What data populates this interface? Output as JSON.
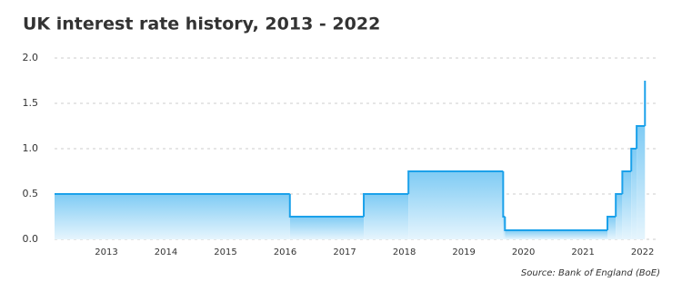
{
  "chart_data": {
    "type": "step",
    "title": "UK interest rate history, 2013 - 2022",
    "source": "Source: Bank of England (BoE)",
    "series": [
      {
        "color": "#1ba1ea",
        "x": [
          2012.13,
          2016.08,
          2017.32,
          2018.07,
          2019.66,
          2019.69,
          2021.41,
          2021.55,
          2021.66,
          2021.81,
          2021.9,
          2022.04
        ],
        "values": [
          0.5,
          0.25,
          0.5,
          0.75,
          0.25,
          0.1,
          0.25,
          0.5,
          0.75,
          1.0,
          1.25,
          1.75
        ]
      }
    ],
    "xlim": [
      2012.13,
      2022.28
    ],
    "xticks": [
      2013,
      2014,
      2015,
      2016,
      2017,
      2018,
      2019,
      2020,
      2021,
      2022
    ],
    "ylim": [
      0,
      2
    ],
    "yticks": [
      {
        "value": 0,
        "label": "0.0"
      },
      0.5,
      {
        "value": 1,
        "label": "1.0"
      },
      1.5,
      {
        "value": 2,
        "label": "2.0"
      }
    ],
    "grid": true
  }
}
